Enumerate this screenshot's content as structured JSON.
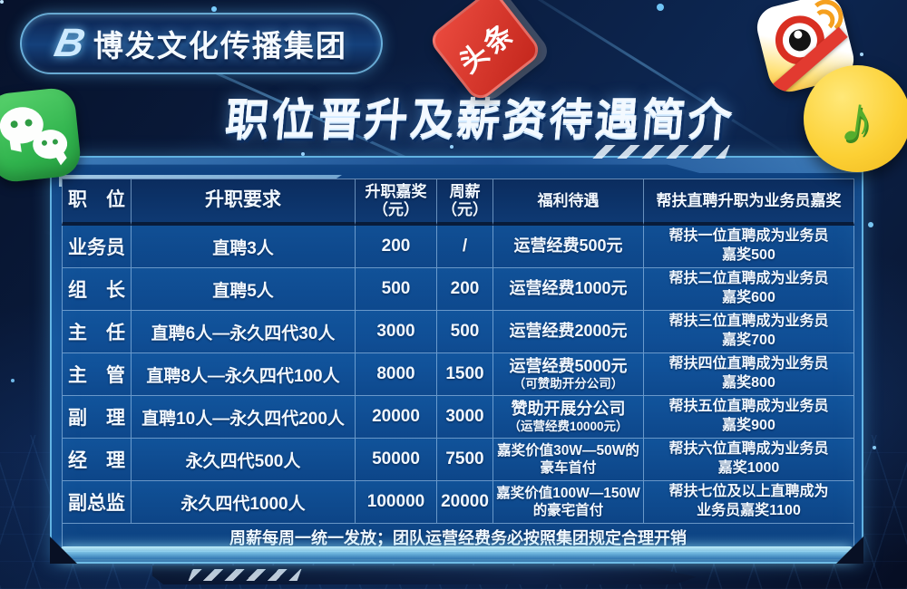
{
  "brand": {
    "mark": "B",
    "name": "博发文化传播集团"
  },
  "title": "职位晋升及薪资待遇简介",
  "icons": {
    "wechat": "wechat-icon",
    "toutiao": "toutiao-icon",
    "toutiao_label": "头条",
    "weibo": "weibo-icon",
    "qq_music": "qq-music-icon",
    "qq_note_glyph": "♪"
  },
  "colors": {
    "bg_navy": "#0a1c3e",
    "panel_blue": "#105098",
    "border_cyan": "#79d2f7",
    "header_navy": "#0b2c5e",
    "text_white": "#f2f8ff",
    "wechat_green": "#30b34d",
    "toutiao_red": "#d8352a",
    "weibo_red": "#d92f22",
    "qq_yellow": "#fcd034"
  },
  "table": {
    "headers": {
      "position": "职　位",
      "requirement": "升职要求",
      "reward_l1": "升职嘉奖",
      "reward_l2": "（元）",
      "salary_l1": "周薪",
      "salary_l2": "（元）",
      "welfare": "福利待遇",
      "help": "帮扶直聘升职为业务员嘉奖"
    },
    "rows": [
      {
        "position": "业务员",
        "requirement": "直聘3人",
        "reward": "200",
        "salary": "/",
        "welfare_l1": "运营经费500元",
        "welfare_l2": "",
        "help_l1": "帮扶一位直聘成为业务员",
        "help_l2": "嘉奖500"
      },
      {
        "position": "组　长",
        "requirement": "直聘5人",
        "reward": "500",
        "salary": "200",
        "welfare_l1": "运营经费1000元",
        "welfare_l2": "",
        "help_l1": "帮扶二位直聘成为业务员",
        "help_l2": "嘉奖600"
      },
      {
        "position": "主　任",
        "requirement": "直聘6人—永久四代30人",
        "reward": "3000",
        "salary": "500",
        "welfare_l1": "运营经费2000元",
        "welfare_l2": "",
        "help_l1": "帮扶三位直聘成为业务员",
        "help_l2": "嘉奖700"
      },
      {
        "position": "主　管",
        "requirement": "直聘8人—永久四代100人",
        "reward": "8000",
        "salary": "1500",
        "welfare_l1": "运营经费5000元",
        "welfare_l2": "（可赞助开分公司）",
        "help_l1": "帮扶四位直聘成为业务员",
        "help_l2": "嘉奖800"
      },
      {
        "position": "副　理",
        "requirement": "直聘10人—永久四代200人",
        "reward": "20000",
        "salary": "3000",
        "welfare_l1": "赞助开展分公司",
        "welfare_l2": "（运营经费10000元）",
        "help_l1": "帮扶五位直聘成为业务员",
        "help_l2": "嘉奖900"
      },
      {
        "position": "经　理",
        "requirement": "永久四代500人",
        "reward": "50000",
        "salary": "7500",
        "welfare_l1": "嘉奖价值30W—50W的",
        "welfare_l2": "豪车首付",
        "help_l1": "帮扶六位直聘成为业务员",
        "help_l2": "嘉奖1000"
      },
      {
        "position": "副总监",
        "requirement": "永久四代1000人",
        "reward": "100000",
        "salary": "20000",
        "welfare_l1": "嘉奖价值100W—150W",
        "welfare_l2": "的豪宅首付",
        "help_l1": "帮扶七位及以上直聘成为",
        "help_l2": "业务员嘉奖1100"
      }
    ],
    "note": "周薪每周一统一发放；团队运营经费务必按照集团规定合理开销"
  }
}
